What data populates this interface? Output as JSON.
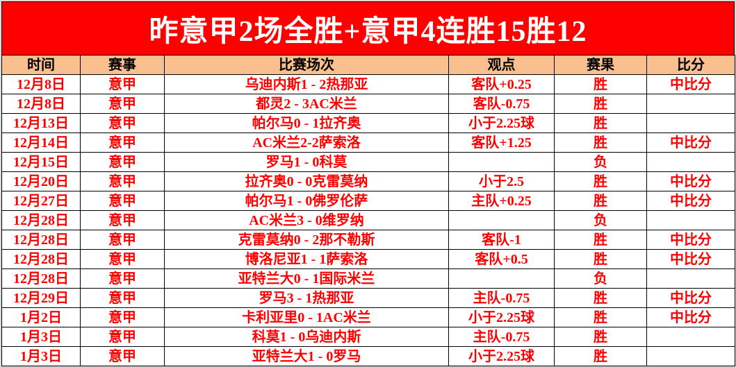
{
  "banner": {
    "title": "昨意甲2场全胜+意甲4连胜15胜12"
  },
  "colors": {
    "banner_bg": "#ff0000",
    "banner_text": "#ffffff",
    "header_bg": "#fabf8f",
    "win_bg": "#ffff00",
    "main_text": "#ff0000",
    "lose_text": "#000000"
  },
  "table": {
    "columns": [
      {
        "key": "time",
        "label": "时间"
      },
      {
        "key": "league",
        "label": "赛事"
      },
      {
        "key": "match",
        "label": "比赛场次"
      },
      {
        "key": "opinion",
        "label": "观点"
      },
      {
        "key": "result",
        "label": "赛果"
      },
      {
        "key": "score",
        "label": "比分"
      }
    ],
    "win_label": "胜",
    "lose_label": "负",
    "rows": [
      {
        "time": "12月8日",
        "league": "意甲",
        "match": "乌迪内斯1 - 2热那亚",
        "opinion": "客队+0.25",
        "result": "胜",
        "score": "中比分"
      },
      {
        "time": "12月8日",
        "league": "意甲",
        "match": "都灵2 - 3AC米兰",
        "opinion": "客队-0.75",
        "result": "胜",
        "score": ""
      },
      {
        "time": "12月13日",
        "league": "意甲",
        "match": "帕尔马0 - 1拉齐奥",
        "opinion": "小于2.25球",
        "result": "胜",
        "score": ""
      },
      {
        "time": "12月14日",
        "league": "意甲",
        "match": "AC米兰2-2萨索洛",
        "opinion": "客队+1.25",
        "result": "胜",
        "score": "中比分"
      },
      {
        "time": "12月15日",
        "league": "意甲",
        "match": "罗马1 - 0科莫",
        "opinion": "",
        "result": "负",
        "score": ""
      },
      {
        "time": "12月20日",
        "league": "意甲",
        "match": "拉齐奥0 - 0克雷莫纳",
        "opinion": "小于2.5",
        "result": "胜",
        "score": "中比分"
      },
      {
        "time": "12月27日",
        "league": "意甲",
        "match": "帕尔马1 - 0佛罗伦萨",
        "opinion": "主队+0.25",
        "result": "胜",
        "score": "中比分"
      },
      {
        "time": "12月28日",
        "league": "意甲",
        "match": "AC米兰3 - 0维罗纳",
        "opinion": "",
        "result": "负",
        "score": ""
      },
      {
        "time": "12月28日",
        "league": "意甲",
        "match": "克雷莫纳0 - 2那不勒斯",
        "opinion": "客队-1",
        "result": "胜",
        "score": "中比分"
      },
      {
        "time": "12月28日",
        "league": "意甲",
        "match": "博洛尼亚1 - 1萨索洛",
        "opinion": "客队+0.5",
        "result": "胜",
        "score": "中比分"
      },
      {
        "time": "12月28日",
        "league": "意甲",
        "match": "亚特兰大0 - 1国际米兰",
        "opinion": "",
        "result": "负",
        "score": ""
      },
      {
        "time": "12月29日",
        "league": "意甲",
        "match": "罗马3 - 1热那亚",
        "opinion": "主队-0.75",
        "result": "胜",
        "score": "中比分"
      },
      {
        "time": "1月2日",
        "league": "意甲",
        "match": "卡利亚里0 - 1AC米兰",
        "opinion": "小于2.25球",
        "result": "胜",
        "score": "中比分"
      },
      {
        "time": "1月3日",
        "league": "意甲",
        "match": "科莫1 - 0乌迪内斯",
        "opinion": "主队-0.75",
        "result": "胜",
        "score": ""
      },
      {
        "time": "1月3日",
        "league": "意甲",
        "match": "亚特兰大1 - 0罗马",
        "opinion": "小于2.25球",
        "result": "胜",
        "score": ""
      }
    ]
  }
}
